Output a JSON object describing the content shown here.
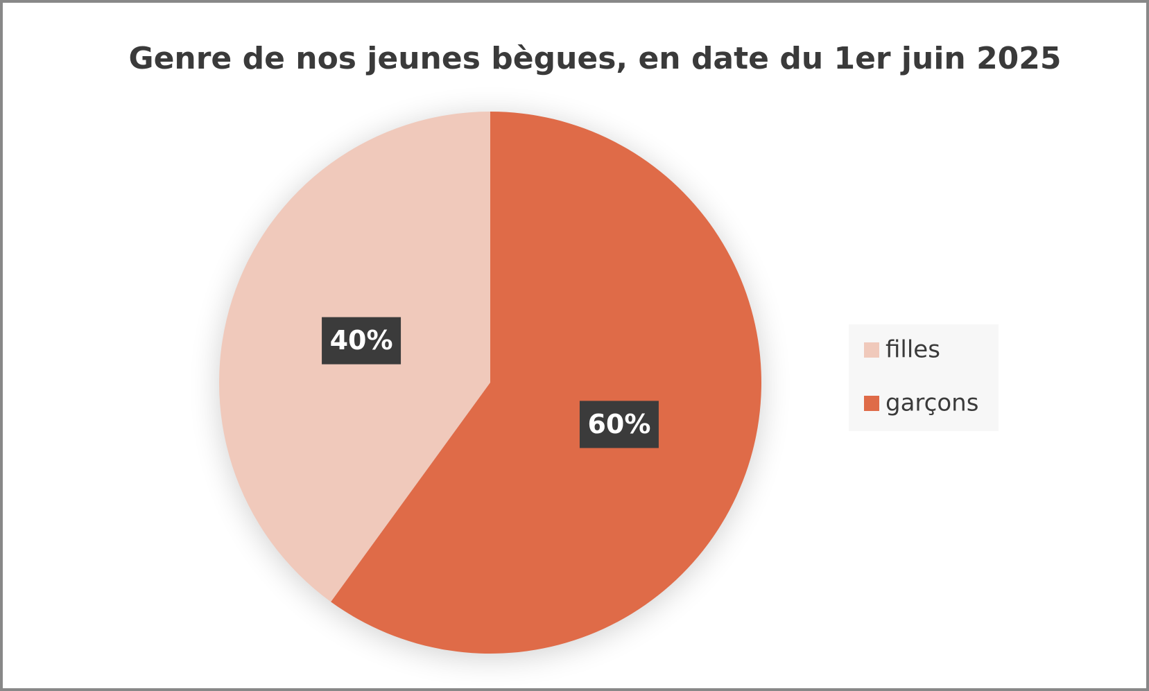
{
  "chart_data": {
    "type": "pie",
    "title": "Genre de nos jeunes bègues, en date du 1er juin 2025",
    "categories": [
      "filles",
      "garçons"
    ],
    "values": [
      40,
      60
    ],
    "value_labels": [
      "40%",
      "60%"
    ],
    "colors": [
      "#f0c9bb",
      "#df6b48"
    ],
    "legend": "right"
  }
}
